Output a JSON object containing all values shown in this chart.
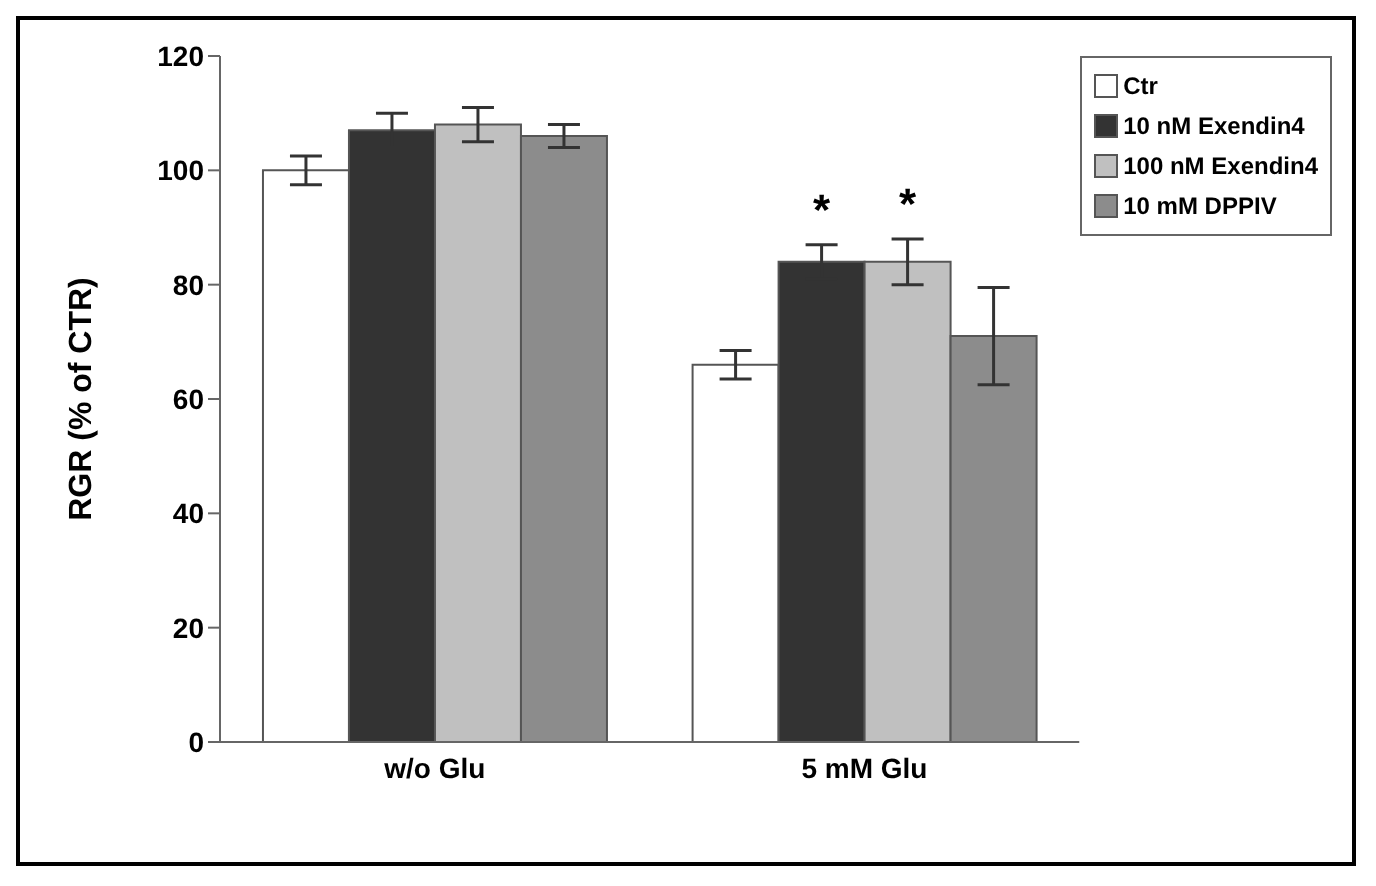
{
  "chart_data": {
    "type": "bar",
    "ylabel": "RGR (% of CTR)",
    "categories": [
      "w/o Glu",
      "5 mM Glu"
    ],
    "series": [
      {
        "name": "Ctr",
        "color": "#ffffff",
        "values": [
          100,
          66
        ],
        "errors": [
          2.5,
          2.5
        ]
      },
      {
        "name": "10 nM Exendin4",
        "color": "#333333",
        "values": [
          107,
          84
        ],
        "errors": [
          3,
          3
        ]
      },
      {
        "name": "100 nM Exendin4",
        "color": "#c0c0c0",
        "values": [
          108,
          84
        ],
        "errors": [
          3,
          4
        ]
      },
      {
        "name": "10 mM DPPIV",
        "color": "#8c8c8c",
        "values": [
          106,
          71
        ],
        "errors": [
          2,
          8.5
        ]
      }
    ],
    "ylim": [
      0,
      120
    ],
    "yticks": [
      0,
      20,
      40,
      60,
      80,
      100,
      120
    ],
    "grid": false,
    "legend": "top right",
    "annotations": [
      {
        "text": "*",
        "x": "5 mM Glu",
        "y": 84
      },
      {
        "text": "*",
        "x": "5 mM Glu",
        "y": 84
      }
    ]
  }
}
